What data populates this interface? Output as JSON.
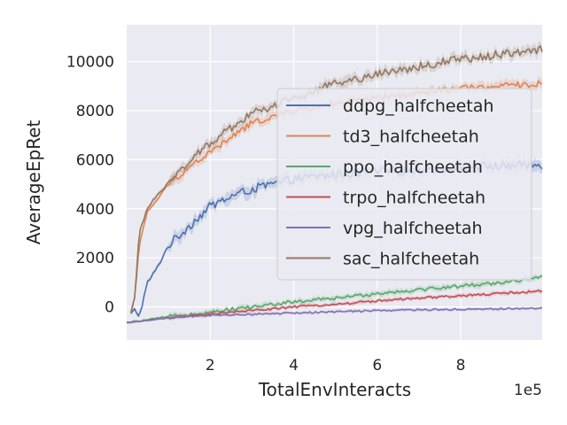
{
  "chart_data": {
    "type": "line",
    "title": "",
    "xlabel": "TotalEnvInteracts",
    "ylabel": "AverageEpRet",
    "x_offset_label": "1e5",
    "x_ticks": [
      2,
      4,
      6,
      8
    ],
    "x_tick_labels": [
      "2",
      "4",
      "6",
      "8"
    ],
    "y_ticks": [
      0,
      2000,
      4000,
      6000,
      8000,
      10000
    ],
    "y_tick_labels": [
      "0",
      "2000",
      "4000",
      "6000",
      "8000",
      "10000"
    ],
    "xlim": [
      0.0,
      9.95
    ],
    "ylim": [
      -1350,
      11500
    ],
    "grid": true,
    "legend_position": "right",
    "series": [
      {
        "name": "ddpg_halfcheetah",
        "color": "#4c72b0",
        "x": [
          0.1,
          0.2,
          0.3,
          0.5,
          0.7,
          1.0,
          1.5,
          2.0,
          2.5,
          3.0,
          4.0,
          5.0,
          6.0,
          7.0,
          8.0,
          9.0,
          9.95
        ],
        "values": [
          -300,
          -100,
          -400,
          1000,
          1500,
          2500,
          3300,
          4100,
          4500,
          4800,
          5200,
          5400,
          5500,
          5600,
          5700,
          5750,
          5800
        ]
      },
      {
        "name": "td3_halfcheetah",
        "color": "#dd8452",
        "x": [
          0.1,
          0.2,
          0.3,
          0.5,
          0.7,
          1.0,
          1.5,
          2.0,
          2.5,
          3.0,
          4.0,
          5.0,
          6.0,
          7.0,
          8.0,
          9.0,
          9.95
        ],
        "values": [
          -300,
          500,
          2500,
          3900,
          4300,
          5000,
          5700,
          6300,
          6900,
          7500,
          8000,
          8300,
          8500,
          8700,
          8900,
          9000,
          9100
        ]
      },
      {
        "name": "ppo_halfcheetah",
        "color": "#55a868",
        "x": [
          0.0,
          1.0,
          2.0,
          3.0,
          4.0,
          5.0,
          6.0,
          7.0,
          8.0,
          9.0,
          9.95
        ],
        "values": [
          -650,
          -400,
          -200,
          0,
          200,
          350,
          550,
          700,
          850,
          1000,
          1200
        ]
      },
      {
        "name": "trpo_halfcheetah",
        "color": "#c44e52",
        "x": [
          0.0,
          1.0,
          2.0,
          3.0,
          4.0,
          5.0,
          6.0,
          7.0,
          8.0,
          9.0,
          9.95
        ],
        "values": [
          -650,
          -450,
          -300,
          -150,
          0,
          100,
          250,
          350,
          450,
          550,
          650
        ]
      },
      {
        "name": "vpg_halfcheetah",
        "color": "#8172b3",
        "x": [
          0.0,
          1.0,
          2.0,
          3.0,
          4.0,
          5.0,
          6.0,
          7.0,
          8.0,
          9.0,
          9.95
        ],
        "values": [
          -650,
          -450,
          -350,
          -300,
          -250,
          -200,
          -150,
          -120,
          -100,
          -70,
          -50
        ]
      },
      {
        "name": "sac_halfcheetah",
        "color": "#937860",
        "x": [
          0.1,
          0.2,
          0.3,
          0.5,
          0.7,
          1.0,
          1.5,
          2.0,
          2.5,
          3.0,
          4.0,
          5.0,
          6.0,
          7.0,
          8.0,
          9.0,
          9.95
        ],
        "values": [
          -300,
          500,
          3000,
          4000,
          4500,
          5100,
          5900,
          6700,
          7300,
          7900,
          8500,
          9100,
          9500,
          9800,
          10100,
          10300,
          10500
        ]
      }
    ]
  }
}
